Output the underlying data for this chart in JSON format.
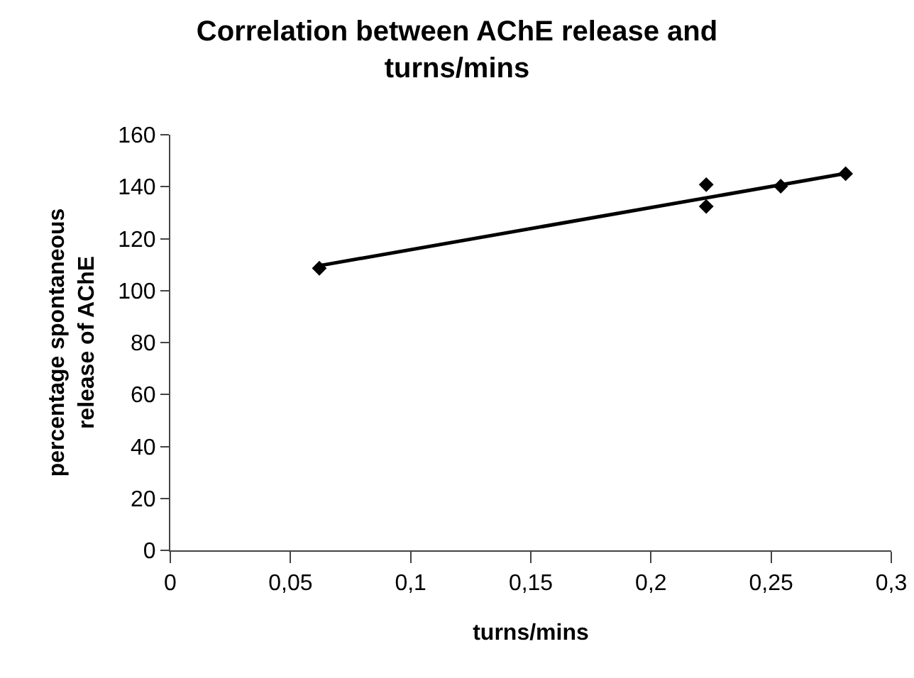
{
  "chart_data": {
    "type": "scatter",
    "title": "Correlation between AChE release and turns/mins",
    "xlabel": "turns/mins",
    "ylabel": "percentage spontaneous release of AChE",
    "xlim": [
      0,
      0.3
    ],
    "xticks": [
      0,
      {
        "value": 0.05,
        "label": "0,05"
      },
      {
        "value": 0.1,
        "label": "0,1"
      },
      {
        "value": 0.15,
        "label": "0,15"
      },
      {
        "value": 0.2,
        "label": "0,2"
      },
      {
        "value": 0.25,
        "label": "0,25"
      },
      {
        "value": 0.3,
        "label": "0,3"
      }
    ],
    "ylim": [
      0,
      160
    ],
    "yticks": [
      0,
      20,
      40,
      60,
      80,
      100,
      120,
      140,
      160
    ],
    "marker": "diamond",
    "series": [
      {
        "type": "scatter",
        "color": "#000000",
        "x": [
          0.062,
          0.223,
          0.223,
          0.254,
          0.281
        ],
        "values": [
          108.6,
          140.8,
          132.4,
          140.2,
          145.0
        ]
      },
      {
        "type": "line",
        "color": "#000000",
        "x": [
          0.062,
          0.281
        ],
        "values": [
          109.6,
          145.1
        ],
        "marker": "none",
        "line_style": "solid"
      }
    ]
  }
}
